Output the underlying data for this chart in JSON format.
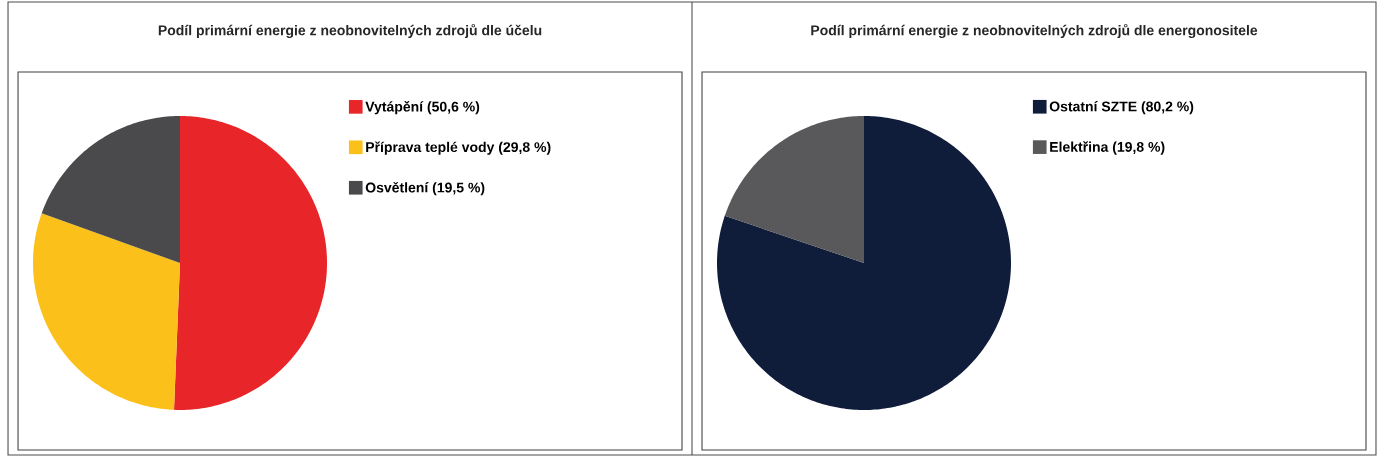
{
  "chart_data": [
    {
      "type": "pie",
      "title": "Podíl primární energie z neobnovitelných zdrojů dle účelu",
      "categories": [
        "Vytápění (50,6 %)",
        "Příprava teplé vody (29,8 %)",
        "Osvětlení (19,5 %)"
      ],
      "values": [
        50.6,
        29.8,
        19.5
      ],
      "colors": [
        "#e8262a",
        "#fbc01a",
        "#4a4a4c"
      ],
      "legend": "right"
    },
    {
      "type": "pie",
      "title": "Podíl primární energie z neobnovitelných zdrojů dle energonositele",
      "categories": [
        "Ostatní SZTE (80,2 %)",
        "Elektřina (19,8 %)"
      ],
      "values": [
        80.2,
        19.8
      ],
      "colors": [
        "#0f1c3a",
        "#59595b"
      ],
      "legend": "right"
    }
  ]
}
